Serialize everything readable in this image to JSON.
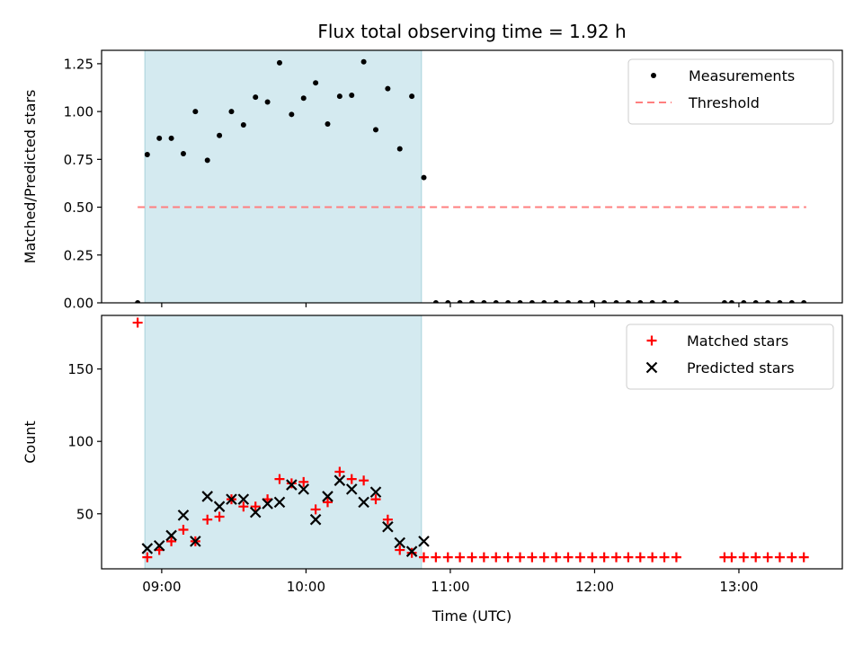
{
  "chart_data": [
    {
      "type": "scatter",
      "title": "Flux total observing time = 1.92 h",
      "ylabel": "Matched/Predicted stars",
      "xlabel": "",
      "xlim": [
        "08:35",
        "13:43"
      ],
      "ylim": [
        0,
        1.32
      ],
      "yticks": [
        0.0,
        0.25,
        0.5,
        0.75,
        1.0,
        1.25
      ],
      "ytick_labels": [
        "0.00",
        "0.25",
        "0.50",
        "0.75",
        "1.00",
        "1.25"
      ],
      "grid": false,
      "legend_position": "upper right",
      "shaded_interval": {
        "start": "08:53",
        "end": "10:48",
        "color": "#d4eaf0"
      },
      "threshold": {
        "name": "Threshold",
        "value": 0.5,
        "x_start": "08:50",
        "x_end": "13:28",
        "color": "#ff7f7f",
        "style": "dashed"
      },
      "series": [
        {
          "name": "Measurements",
          "marker": "dot",
          "color": "#000000",
          "points": [
            [
              "08:50",
              0.0
            ],
            [
              "08:54",
              0.775
            ],
            [
              "08:59",
              0.86
            ],
            [
              "09:04",
              0.86
            ],
            [
              "09:09",
              0.78
            ],
            [
              "09:14",
              1.0
            ],
            [
              "09:19",
              0.745
            ],
            [
              "09:24",
              0.875
            ],
            [
              "09:29",
              1.0
            ],
            [
              "09:34",
              0.93
            ],
            [
              "09:39",
              1.075
            ],
            [
              "09:44",
              1.05
            ],
            [
              "09:49",
              1.255
            ],
            [
              "09:54",
              0.985
            ],
            [
              "09:59",
              1.07
            ],
            [
              "10:04",
              1.15
            ],
            [
              "10:09",
              0.935
            ],
            [
              "10:14",
              1.08
            ],
            [
              "10:19",
              1.085
            ],
            [
              "10:24",
              1.26
            ],
            [
              "10:29",
              0.905
            ],
            [
              "10:34",
              1.12
            ],
            [
              "10:39",
              0.805
            ],
            [
              "10:44",
              1.08
            ],
            [
              "10:49",
              0.655
            ],
            [
              "10:54",
              0.0
            ],
            [
              "10:59",
              0.0
            ],
            [
              "11:04",
              0.0
            ],
            [
              "11:09",
              0.0
            ],
            [
              "11:14",
              0.0
            ],
            [
              "11:19",
              0.0
            ],
            [
              "11:24",
              0.0
            ],
            [
              "11:29",
              0.0
            ],
            [
              "11:34",
              0.0
            ],
            [
              "11:39",
              0.0
            ],
            [
              "11:44",
              0.0
            ],
            [
              "11:49",
              0.0
            ],
            [
              "11:54",
              0.0
            ],
            [
              "11:59",
              0.0
            ],
            [
              "12:04",
              0.0
            ],
            [
              "12:09",
              0.0
            ],
            [
              "12:14",
              0.0
            ],
            [
              "12:19",
              0.0
            ],
            [
              "12:24",
              0.0
            ],
            [
              "12:29",
              0.0
            ],
            [
              "12:34",
              0.0
            ],
            [
              "12:54",
              0.0
            ],
            [
              "12:57",
              0.0
            ],
            [
              "13:02",
              0.0
            ],
            [
              "13:07",
              0.0
            ],
            [
              "13:12",
              0.0
            ],
            [
              "13:17",
              0.0
            ],
            [
              "13:22",
              0.0
            ],
            [
              "13:27",
              0.0
            ]
          ]
        }
      ]
    },
    {
      "type": "scatter",
      "title": "",
      "xlabel": "Time (UTC)",
      "ylabel": "Count",
      "xlim": [
        "08:35",
        "13:43"
      ],
      "ylim": [
        12,
        187
      ],
      "xticks": [
        "09:00",
        "10:00",
        "11:00",
        "12:00",
        "13:00"
      ],
      "xtick_labels": [
        "09:00",
        "10:00",
        "11:00",
        "12:00",
        "13:00"
      ],
      "yticks": [
        50,
        100,
        150
      ],
      "ytick_labels": [
        "50",
        "100",
        "150"
      ],
      "grid": false,
      "legend_position": "upper right",
      "shaded_interval": {
        "start": "08:53",
        "end": "10:48",
        "color": "#d4eaf0"
      },
      "series": [
        {
          "name": "Matched stars",
          "marker": "plus",
          "color": "#ff0000",
          "points": [
            [
              "08:50",
              182
            ],
            [
              "08:54",
              20
            ],
            [
              "08:59",
              25
            ],
            [
              "09:04",
              31
            ],
            [
              "09:09",
              39
            ],
            [
              "09:14",
              31
            ],
            [
              "09:19",
              46
            ],
            [
              "09:24",
              48
            ],
            [
              "09:29",
              60
            ],
            [
              "09:34",
              55
            ],
            [
              "09:39",
              55
            ],
            [
              "09:44",
              60
            ],
            [
              "09:49",
              74
            ],
            [
              "09:54",
              71
            ],
            [
              "09:59",
              72
            ],
            [
              "10:04",
              53
            ],
            [
              "10:09",
              58
            ],
            [
              "10:14",
              79
            ],
            [
              "10:19",
              74
            ],
            [
              "10:24",
              73
            ],
            [
              "10:29",
              60
            ],
            [
              "10:34",
              46
            ],
            [
              "10:39",
              25
            ],
            [
              "10:44",
              23
            ],
            [
              "10:49",
              20
            ],
            [
              "10:54",
              20
            ],
            [
              "10:59",
              20
            ],
            [
              "11:04",
              20
            ],
            [
              "11:09",
              20
            ],
            [
              "11:14",
              20
            ],
            [
              "11:19",
              20
            ],
            [
              "11:24",
              20
            ],
            [
              "11:29",
              20
            ],
            [
              "11:34",
              20
            ],
            [
              "11:39",
              20
            ],
            [
              "11:44",
              20
            ],
            [
              "11:49",
              20
            ],
            [
              "11:54",
              20
            ],
            [
              "11:59",
              20
            ],
            [
              "12:04",
              20
            ],
            [
              "12:09",
              20
            ],
            [
              "12:14",
              20
            ],
            [
              "12:19",
              20
            ],
            [
              "12:24",
              20
            ],
            [
              "12:29",
              20
            ],
            [
              "12:34",
              20
            ],
            [
              "12:54",
              20
            ],
            [
              "12:57",
              20
            ],
            [
              "13:02",
              20
            ],
            [
              "13:07",
              20
            ],
            [
              "13:12",
              20
            ],
            [
              "13:17",
              20
            ],
            [
              "13:22",
              20
            ],
            [
              "13:27",
              20
            ]
          ]
        },
        {
          "name": "Predicted stars",
          "marker": "x",
          "color": "#000000",
          "points": [
            [
              "08:54",
              26
            ],
            [
              "08:59",
              28
            ],
            [
              "09:04",
              35
            ],
            [
              "09:09",
              49
            ],
            [
              "09:14",
              31
            ],
            [
              "09:19",
              62
            ],
            [
              "09:24",
              55
            ],
            [
              "09:29",
              60
            ],
            [
              "09:34",
              60
            ],
            [
              "09:39",
              51
            ],
            [
              "09:44",
              57
            ],
            [
              "09:49",
              58
            ],
            [
              "09:54",
              70
            ],
            [
              "09:59",
              67
            ],
            [
              "10:04",
              46
            ],
            [
              "10:09",
              62
            ],
            [
              "10:14",
              73
            ],
            [
              "10:19",
              67
            ],
            [
              "10:24",
              58
            ],
            [
              "10:29",
              65
            ],
            [
              "10:34",
              41
            ],
            [
              "10:39",
              30
            ],
            [
              "10:44",
              24
            ],
            [
              "10:49",
              31
            ]
          ]
        }
      ]
    }
  ]
}
